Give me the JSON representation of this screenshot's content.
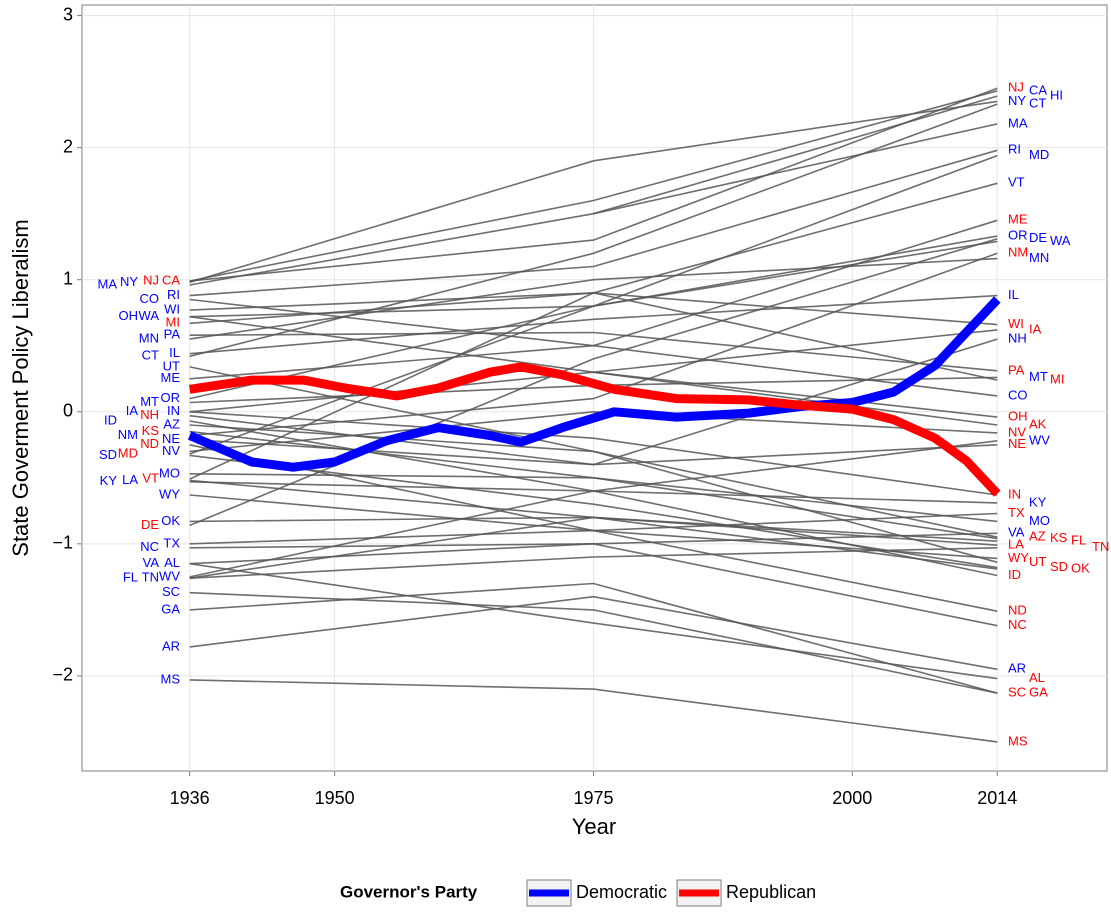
{
  "chart_data": {
    "type": "line",
    "xlabel": "Year",
    "ylabel": "State Goverment Policy Liberalism",
    "xlim": [
      1925.6,
      2024.6
    ],
    "ylim": [
      -2.72,
      3.08
    ],
    "xticks": [
      1936,
      1950,
      1975,
      2000,
      2014
    ],
    "yticks": [
      {
        "value": -2,
        "label": "−2"
      },
      {
        "value": -1,
        "label": "−1"
      },
      0,
      1,
      2,
      3
    ],
    "grid": true,
    "legend": {
      "title": "Governor's Party",
      "position": "bottom"
    },
    "series": [
      {
        "name": "Democratic",
        "color": "#0000ff",
        "x": [
          1936,
          1942,
          1946,
          1950,
          1955,
          1960,
          1965,
          1968,
          1972,
          1977,
          1983,
          1990,
          1995,
          2000,
          2004,
          2008,
          2011,
          2014
        ],
        "values": [
          -0.18,
          -0.38,
          -0.42,
          -0.38,
          -0.22,
          -0.12,
          -0.18,
          -0.23,
          -0.12,
          0.0,
          -0.04,
          -0.01,
          0.04,
          0.07,
          0.15,
          0.35,
          0.6,
          0.85
        ]
      },
      {
        "name": "Republican",
        "color": "#ff0000",
        "x": [
          1936,
          1942,
          1947,
          1951,
          1956,
          1960,
          1965,
          1968,
          1972,
          1977,
          1983,
          1990,
          1995,
          2000,
          2004,
          2008,
          2011,
          2014
        ],
        "values": [
          0.17,
          0.24,
          0.24,
          0.18,
          0.12,
          0.18,
          0.3,
          0.34,
          0.28,
          0.17,
          0.1,
          0.09,
          0.05,
          0.02,
          -0.06,
          -0.2,
          -0.37,
          -0.62
        ]
      }
    ],
    "state_line_color": "#555555",
    "state_x": [
      1936,
      1975,
      2014
    ],
    "label_colors": {
      "D": "#0000ff",
      "R": "#ff0000"
    },
    "states": [
      {
        "name": "CA",
        "values": [
          0.99,
          1.6,
          2.43
        ],
        "parties": [
          "R",
          "D"
        ]
      },
      {
        "name": "NJ",
        "values": [
          0.99,
          1.3,
          2.45
        ],
        "parties": [
          "R",
          "R"
        ]
      },
      {
        "name": "NY",
        "values": [
          0.98,
          1.9,
          2.35
        ],
        "parties": [
          "D",
          "D"
        ]
      },
      {
        "name": "MA",
        "values": [
          0.96,
          1.5,
          2.18
        ],
        "parties": [
          "D",
          "D"
        ]
      },
      {
        "name": "RI",
        "values": [
          0.88,
          1.1,
          1.98
        ],
        "parties": [
          "D",
          "D"
        ]
      },
      {
        "name": "CO",
        "values": [
          0.85,
          0.5,
          0.12
        ],
        "parties": [
          "D",
          "D"
        ]
      },
      {
        "name": "WI",
        "values": [
          0.77,
          0.9,
          0.66
        ],
        "parties": [
          "D",
          "R"
        ]
      },
      {
        "name": "WA",
        "values": [
          0.72,
          0.8,
          1.29
        ],
        "parties": [
          "D",
          "D"
        ]
      },
      {
        "name": "OH",
        "values": [
          0.72,
          0.3,
          -0.04
        ],
        "parties": [
          "D",
          "R"
        ]
      },
      {
        "name": "MI",
        "values": [
          0.67,
          0.9,
          0.24
        ],
        "parties": [
          "R",
          "R"
        ]
      },
      {
        "name": "PA",
        "values": [
          0.58,
          0.6,
          0.31
        ],
        "parties": [
          "D",
          "R"
        ]
      },
      {
        "name": "MN",
        "values": [
          0.55,
          1.0,
          1.16
        ],
        "parties": [
          "D",
          "D"
        ]
      },
      {
        "name": "IL",
        "values": [
          0.44,
          0.7,
          0.88
        ],
        "parties": [
          "D",
          "D"
        ]
      },
      {
        "name": "CT",
        "values": [
          0.42,
          1.2,
          2.33
        ],
        "parties": [
          "D",
          "D"
        ]
      },
      {
        "name": "UT",
        "values": [
          0.34,
          -0.3,
          -1.14
        ],
        "parties": [
          "D",
          "R"
        ]
      },
      {
        "name": "ME",
        "values": [
          0.25,
          0.5,
          1.45
        ],
        "parties": [
          "D",
          "R"
        ]
      },
      {
        "name": "OR",
        "values": [
          0.1,
          0.8,
          1.33
        ],
        "parties": [
          "D",
          "D"
        ]
      },
      {
        "name": "MT",
        "values": [
          0.07,
          0.2,
          0.26
        ],
        "parties": [
          "D",
          "D"
        ]
      },
      {
        "name": "IN",
        "values": [
          0.0,
          -0.2,
          -0.63
        ],
        "parties": [
          "D",
          "R"
        ]
      },
      {
        "name": "IA",
        "values": [
          0.0,
          0.3,
          0.62
        ],
        "parties": [
          "D",
          "R"
        ]
      },
      {
        "name": "NH",
        "values": [
          -0.03,
          -0.4,
          0.55
        ],
        "parties": [
          "R",
          "D"
        ]
      },
      {
        "name": "ID",
        "values": [
          -0.07,
          -0.6,
          -1.24
        ],
        "parties": [
          "D",
          "R"
        ]
      },
      {
        "name": "AZ",
        "values": [
          -0.1,
          -0.3,
          -0.95
        ],
        "parties": [
          "D",
          "R"
        ]
      },
      {
        "name": "KS",
        "values": [
          -0.15,
          -0.5,
          -0.96
        ],
        "parties": [
          "R",
          "R"
        ]
      },
      {
        "name": "NM",
        "values": [
          -0.18,
          0.1,
          1.2
        ],
        "parties": [
          "D",
          "R"
        ]
      },
      {
        "name": "NE",
        "values": [
          -0.21,
          -0.4,
          -0.25
        ],
        "parties": [
          "D",
          "R"
        ]
      },
      {
        "name": "ND",
        "values": [
          -0.25,
          -0.9,
          -1.51
        ],
        "parties": [
          "R",
          "R"
        ]
      },
      {
        "name": "NV",
        "values": [
          -0.3,
          0.0,
          -0.16
        ],
        "parties": [
          "D",
          "R"
        ]
      },
      {
        "name": "MD",
        "values": [
          -0.32,
          0.8,
          1.94
        ],
        "parties": [
          "R",
          "D"
        ]
      },
      {
        "name": "SD",
        "values": [
          -0.33,
          -0.7,
          -1.18
        ],
        "parties": [
          "D",
          "R"
        ]
      },
      {
        "name": "MO",
        "values": [
          -0.47,
          -0.5,
          -0.83
        ],
        "parties": [
          "D",
          "D"
        ]
      },
      {
        "name": "VT",
        "values": [
          -0.51,
          0.9,
          1.73
        ],
        "parties": [
          "R",
          "D"
        ]
      },
      {
        "name": "KY",
        "values": [
          -0.53,
          -0.6,
          -0.69
        ],
        "parties": [
          "D",
          "D"
        ]
      },
      {
        "name": "LA",
        "values": [
          -0.52,
          -0.8,
          -1.01
        ],
        "parties": [
          "D",
          "R"
        ]
      },
      {
        "name": "WY",
        "values": [
          -0.63,
          -0.9,
          -1.11
        ],
        "parties": [
          "D",
          "R"
        ]
      },
      {
        "name": "OK",
        "values": [
          -0.83,
          -0.8,
          -1.19
        ],
        "parties": [
          "D",
          "R"
        ]
      },
      {
        "name": "DE",
        "values": [
          -0.86,
          0.4,
          1.31
        ],
        "parties": [
          "R",
          "D"
        ]
      },
      {
        "name": "TX",
        "values": [
          -1.0,
          -0.9,
          -0.77
        ],
        "parties": [
          "D",
          "R"
        ]
      },
      {
        "name": "NC",
        "values": [
          -1.03,
          -1.0,
          -1.62
        ],
        "parties": [
          "D",
          "R"
        ]
      },
      {
        "name": "AL",
        "values": [
          -1.15,
          -1.6,
          -2.02
        ],
        "parties": [
          "D",
          "R"
        ]
      },
      {
        "name": "VA",
        "values": [
          -1.15,
          -1.0,
          -0.92
        ],
        "parties": [
          "D",
          "D"
        ]
      },
      {
        "name": "TN",
        "values": [
          -1.26,
          -1.1,
          -1.03
        ],
        "parties": [
          "D",
          "R"
        ]
      },
      {
        "name": "FL",
        "values": [
          -1.26,
          -0.8,
          -0.98
        ],
        "parties": [
          "D",
          "R"
        ]
      },
      {
        "name": "WV",
        "values": [
          -1.25,
          -0.6,
          -0.22
        ],
        "parties": [
          "D",
          "D"
        ]
      },
      {
        "name": "SC",
        "values": [
          -1.37,
          -1.5,
          -2.13
        ],
        "parties": [
          "D",
          "R"
        ]
      },
      {
        "name": "GA",
        "values": [
          -1.5,
          -1.3,
          -2.13
        ],
        "parties": [
          "D",
          "R"
        ]
      },
      {
        "name": "AR",
        "values": [
          -1.78,
          -1.4,
          -1.95
        ],
        "parties": [
          "D",
          "D"
        ]
      },
      {
        "name": "MS",
        "values": [
          -2.03,
          -2.1,
          -2.5
        ],
        "parties": [
          "D",
          "R"
        ]
      },
      {
        "name": "HI",
        "values": [
          null,
          1.5,
          2.39
        ],
        "parties": [
          null,
          "D"
        ]
      },
      {
        "name": "AK",
        "values": [
          null,
          0.3,
          -0.1
        ],
        "parties": [
          null,
          "R"
        ]
      }
    ]
  }
}
